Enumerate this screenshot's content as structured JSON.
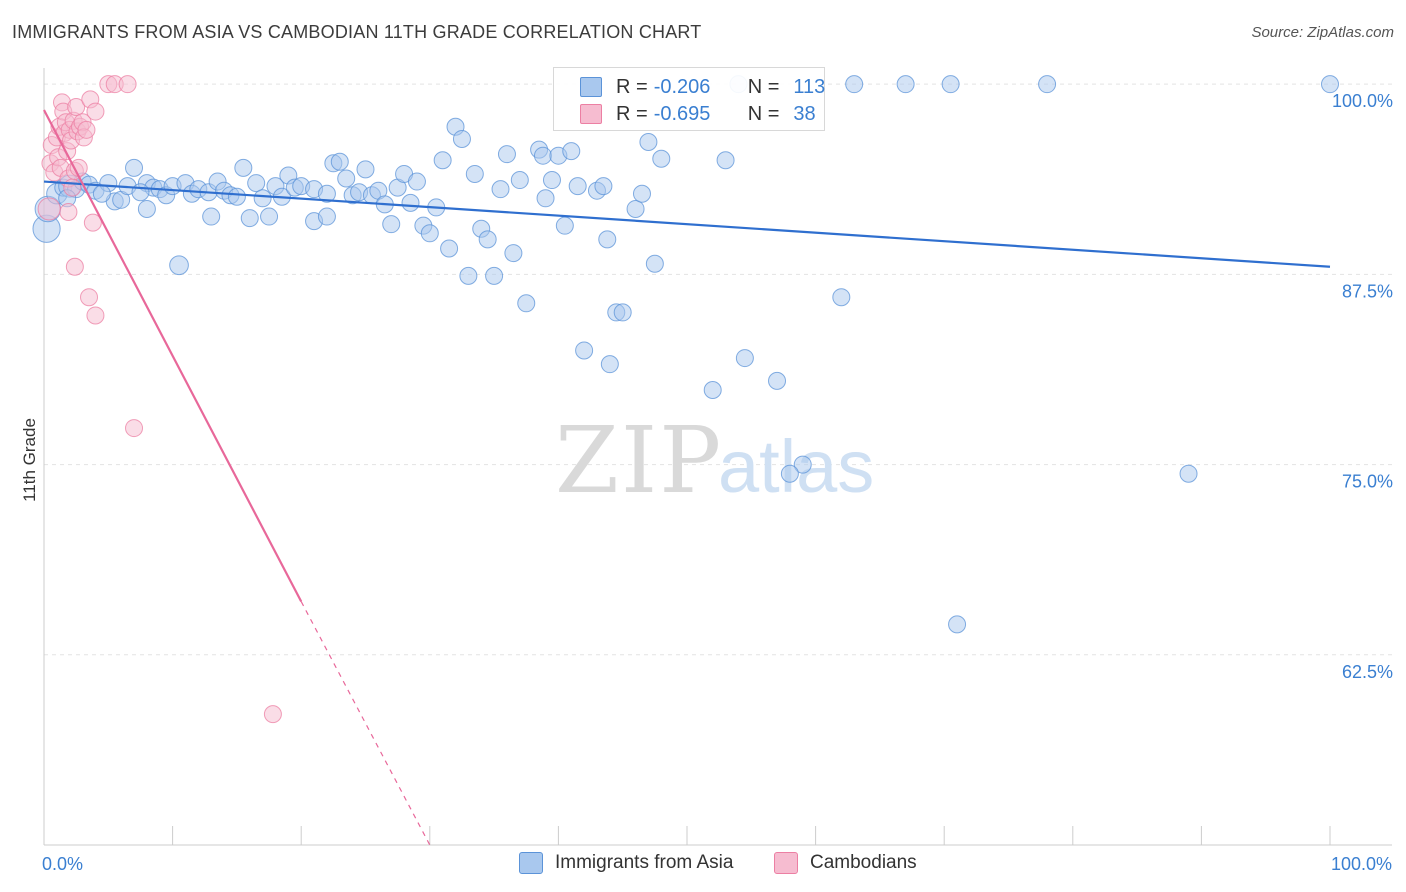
{
  "title": "IMMIGRANTS FROM ASIA VS CAMBODIAN 11TH GRADE CORRELATION CHART",
  "source": "Source: ZipAtlas.com",
  "watermark": {
    "zip": "ZIP",
    "atlas": "atlas"
  },
  "colors": {
    "blue_fill": "#a9c8ee",
    "blue_stroke": "#5b93d8",
    "blue_line": "#2f6fcf",
    "pink_fill": "#f6bcd0",
    "pink_stroke": "#ec7fa3",
    "pink_line": "#e8689a",
    "axis_text": "#3a7fd1",
    "grid": "#e3e3e3"
  },
  "legend": {
    "rows": [
      {
        "r_label": "R =",
        "r_value": "-0.206",
        "n_label": "N =",
        "n_value": "113",
        "series": "blue"
      },
      {
        "r_label": "R =",
        "r_value": "-0.695",
        "n_label": "N =",
        "n_value": "38",
        "series": "pink"
      }
    ]
  },
  "bottom_legend": [
    {
      "label": "Immigrants from Asia",
      "series": "blue"
    },
    {
      "label": "Cambodians",
      "series": "pink"
    }
  ],
  "chart_data": {
    "type": "scatter",
    "title": "IMMIGRANTS FROM ASIA VS CAMBODIAN 11TH GRADE CORRELATION CHART",
    "xlabel": "",
    "ylabel": "11th Grade",
    "xlim": [
      0,
      100
    ],
    "ylim": [
      50,
      100.8
    ],
    "x_tick_labels": [
      {
        "value": 0,
        "label": "0.0%"
      },
      {
        "value": 100,
        "label": "100.0%"
      }
    ],
    "y_tick_labels": [
      {
        "value": 100,
        "label": "100.0%"
      },
      {
        "value": 87.5,
        "label": "87.5%"
      },
      {
        "value": 75,
        "label": "75.0%"
      },
      {
        "value": 62.5,
        "label": "62.5%"
      }
    ],
    "legend_position": "top-center",
    "series": [
      {
        "name": "Immigrants from Asia",
        "color": "blue",
        "trend": {
          "x": [
            0,
            100
          ],
          "y": [
            93.6,
            88.0
          ]
        },
        "points": [
          {
            "x": 0.2,
            "y": 90.5,
            "s": 1.6
          },
          {
            "x": 0.3,
            "y": 91.8,
            "s": 1.5
          },
          {
            "x": 1,
            "y": 92.8,
            "s": 1.2
          },
          {
            "x": 1.5,
            "y": 93.2,
            "s": 1
          },
          {
            "x": 2,
            "y": 93.3,
            "s": 1.3
          },
          {
            "x": 2.5,
            "y": 93.1,
            "s": 1
          },
          {
            "x": 3,
            "y": 93.6,
            "s": 1
          },
          {
            "x": 3.5,
            "y": 93.4,
            "s": 1
          },
          {
            "x": 4,
            "y": 93.0,
            "s": 1
          },
          {
            "x": 5,
            "y": 93.5,
            "s": 1
          },
          {
            "x": 5.5,
            "y": 92.3,
            "s": 1
          },
          {
            "x": 6,
            "y": 92.4,
            "s": 1
          },
          {
            "x": 6.5,
            "y": 93.3,
            "s": 1
          },
          {
            "x": 7,
            "y": 94.5,
            "s": 1
          },
          {
            "x": 8,
            "y": 93.5,
            "s": 1
          },
          {
            "x": 8.5,
            "y": 93.2,
            "s": 1
          },
          {
            "x": 8,
            "y": 91.8,
            "s": 1
          },
          {
            "x": 9,
            "y": 93.1,
            "s": 1
          },
          {
            "x": 9.5,
            "y": 92.7,
            "s": 1
          },
          {
            "x": 10,
            "y": 93.3,
            "s": 1
          },
          {
            "x": 11,
            "y": 93.5,
            "s": 1
          },
          {
            "x": 11.5,
            "y": 92.8,
            "s": 1
          },
          {
            "x": 10.5,
            "y": 88.1,
            "s": 1.1
          },
          {
            "x": 12,
            "y": 93.1,
            "s": 1
          },
          {
            "x": 12.8,
            "y": 92.9,
            "s": 1
          },
          {
            "x": 13,
            "y": 91.3,
            "s": 1
          },
          {
            "x": 13.5,
            "y": 93.6,
            "s": 1
          },
          {
            "x": 14,
            "y": 93.0,
            "s": 1
          },
          {
            "x": 14.5,
            "y": 92.7,
            "s": 1
          },
          {
            "x": 15,
            "y": 92.6,
            "s": 1
          },
          {
            "x": 15.5,
            "y": 94.5,
            "s": 1
          },
          {
            "x": 16,
            "y": 91.2,
            "s": 1
          },
          {
            "x": 16.5,
            "y": 93.5,
            "s": 1
          },
          {
            "x": 17,
            "y": 92.5,
            "s": 1
          },
          {
            "x": 17.5,
            "y": 91.3,
            "s": 1
          },
          {
            "x": 18,
            "y": 93.3,
            "s": 1
          },
          {
            "x": 18.5,
            "y": 92.6,
            "s": 1
          },
          {
            "x": 19,
            "y": 94.0,
            "s": 1
          },
          {
            "x": 19.5,
            "y": 93.2,
            "s": 1
          },
          {
            "x": 20,
            "y": 93.3,
            "s": 1
          },
          {
            "x": 21,
            "y": 93.1,
            "s": 1
          },
          {
            "x": 21,
            "y": 91.0,
            "s": 1
          },
          {
            "x": 22,
            "y": 92.8,
            "s": 1
          },
          {
            "x": 22,
            "y": 91.3,
            "s": 1
          },
          {
            "x": 22.5,
            "y": 94.8,
            "s": 1
          },
          {
            "x": 23,
            "y": 94.9,
            "s": 1
          },
          {
            "x": 23.5,
            "y": 93.8,
            "s": 1
          },
          {
            "x": 24,
            "y": 92.7,
            "s": 1
          },
          {
            "x": 24.5,
            "y": 92.9,
            "s": 1
          },
          {
            "x": 25,
            "y": 94.4,
            "s": 1
          },
          {
            "x": 25.5,
            "y": 92.7,
            "s": 1
          },
          {
            "x": 26,
            "y": 93.0,
            "s": 1
          },
          {
            "x": 26.5,
            "y": 92.1,
            "s": 1
          },
          {
            "x": 27,
            "y": 90.8,
            "s": 1
          },
          {
            "x": 27.5,
            "y": 93.2,
            "s": 1
          },
          {
            "x": 28,
            "y": 94.1,
            "s": 1
          },
          {
            "x": 28.5,
            "y": 92.2,
            "s": 1
          },
          {
            "x": 29,
            "y": 93.6,
            "s": 1
          },
          {
            "x": 29.5,
            "y": 90.7,
            "s": 1
          },
          {
            "x": 30,
            "y": 90.2,
            "s": 1
          },
          {
            "x": 30.5,
            "y": 91.9,
            "s": 1
          },
          {
            "x": 31,
            "y": 95.0,
            "s": 1
          },
          {
            "x": 31.5,
            "y": 89.2,
            "s": 1
          },
          {
            "x": 32,
            "y": 97.2,
            "s": 1
          },
          {
            "x": 32.5,
            "y": 96.4,
            "s": 1
          },
          {
            "x": 33,
            "y": 87.4,
            "s": 1
          },
          {
            "x": 33.5,
            "y": 94.1,
            "s": 1
          },
          {
            "x": 34,
            "y": 90.5,
            "s": 1
          },
          {
            "x": 34.5,
            "y": 89.8,
            "s": 1
          },
          {
            "x": 35,
            "y": 87.4,
            "s": 1
          },
          {
            "x": 35.5,
            "y": 93.1,
            "s": 1
          },
          {
            "x": 36,
            "y": 95.4,
            "s": 1
          },
          {
            "x": 36.5,
            "y": 88.9,
            "s": 1
          },
          {
            "x": 37,
            "y": 93.7,
            "s": 1
          },
          {
            "x": 37.5,
            "y": 85.6,
            "s": 1
          },
          {
            "x": 38.5,
            "y": 95.7,
            "s": 1
          },
          {
            "x": 38.8,
            "y": 95.3,
            "s": 1
          },
          {
            "x": 39,
            "y": 92.5,
            "s": 1
          },
          {
            "x": 39.5,
            "y": 93.7,
            "s": 1
          },
          {
            "x": 40,
            "y": 95.3,
            "s": 1
          },
          {
            "x": 40.5,
            "y": 90.7,
            "s": 1
          },
          {
            "x": 41,
            "y": 95.6,
            "s": 1
          },
          {
            "x": 41.5,
            "y": 93.3,
            "s": 1
          },
          {
            "x": 42,
            "y": 82.5,
            "s": 1
          },
          {
            "x": 43,
            "y": 93.0,
            "s": 1
          },
          {
            "x": 43.5,
            "y": 93.3,
            "s": 1
          },
          {
            "x": 43.8,
            "y": 89.8,
            "s": 1
          },
          {
            "x": 44,
            "y": 81.6,
            "s": 1
          },
          {
            "x": 44.5,
            "y": 85.0,
            "s": 1
          },
          {
            "x": 45,
            "y": 85.0,
            "s": 1
          },
          {
            "x": 46,
            "y": 91.8,
            "s": 1
          },
          {
            "x": 46.5,
            "y": 92.8,
            "s": 1
          },
          {
            "x": 47,
            "y": 96.2,
            "s": 1
          },
          {
            "x": 47.5,
            "y": 88.2,
            "s": 1
          },
          {
            "x": 48,
            "y": 95.1,
            "s": 1
          },
          {
            "x": 52,
            "y": 79.9,
            "s": 1
          },
          {
            "x": 53,
            "y": 95.0,
            "s": 1
          },
          {
            "x": 54,
            "y": 100.0,
            "s": 1
          },
          {
            "x": 54.5,
            "y": 82.0,
            "s": 1
          },
          {
            "x": 57,
            "y": 80.5,
            "s": 1
          },
          {
            "x": 59,
            "y": 75.0,
            "s": 1
          },
          {
            "x": 58,
            "y": 74.4,
            "s": 1
          },
          {
            "x": 62,
            "y": 86.0,
            "s": 1
          },
          {
            "x": 63,
            "y": 100.0,
            "s": 1
          },
          {
            "x": 67,
            "y": 100.0,
            "s": 1
          },
          {
            "x": 70.5,
            "y": 100.0,
            "s": 1
          },
          {
            "x": 71,
            "y": 64.5,
            "s": 1
          },
          {
            "x": 78,
            "y": 100.0,
            "s": 1
          },
          {
            "x": 89,
            "y": 74.4,
            "s": 1
          },
          {
            "x": 100,
            "y": 100.0,
            "s": 1
          },
          {
            "x": 1.8,
            "y": 92.5,
            "s": 1
          },
          {
            "x": 4.5,
            "y": 92.8,
            "s": 1
          },
          {
            "x": 7.5,
            "y": 92.9,
            "s": 1
          }
        ]
      },
      {
        "name": "Cambodians",
        "color": "pink",
        "trend": {
          "x": [
            0,
            20
          ],
          "y": [
            98.3,
            66.0
          ]
        },
        "trend_dashed": {
          "x": [
            20,
            30
          ],
          "y": [
            66.0,
            50.0
          ]
        },
        "points": [
          {
            "x": 0.4,
            "y": 91.8,
            "s": 1.3
          },
          {
            "x": 0.5,
            "y": 94.8,
            "s": 1
          },
          {
            "x": 0.6,
            "y": 96.0,
            "s": 1
          },
          {
            "x": 0.8,
            "y": 94.2,
            "s": 1
          },
          {
            "x": 1,
            "y": 96.5,
            "s": 1
          },
          {
            "x": 1.1,
            "y": 95.2,
            "s": 1
          },
          {
            "x": 1.2,
            "y": 97.2,
            "s": 1
          },
          {
            "x": 1.3,
            "y": 94.5,
            "s": 1
          },
          {
            "x": 1.4,
            "y": 98.8,
            "s": 1
          },
          {
            "x": 1.5,
            "y": 98.2,
            "s": 1
          },
          {
            "x": 1.6,
            "y": 96.8,
            "s": 1
          },
          {
            "x": 1.7,
            "y": 97.5,
            "s": 1
          },
          {
            "x": 1.8,
            "y": 95.6,
            "s": 1
          },
          {
            "x": 1.9,
            "y": 93.8,
            "s": 1
          },
          {
            "x": 2,
            "y": 97.0,
            "s": 1
          },
          {
            "x": 2.1,
            "y": 96.3,
            "s": 1
          },
          {
            "x": 2.2,
            "y": 93.2,
            "s": 1
          },
          {
            "x": 2.3,
            "y": 97.6,
            "s": 1
          },
          {
            "x": 2.4,
            "y": 94.3,
            "s": 1
          },
          {
            "x": 2.5,
            "y": 98.5,
            "s": 1
          },
          {
            "x": 2.6,
            "y": 96.9,
            "s": 1
          },
          {
            "x": 2.7,
            "y": 94.5,
            "s": 1
          },
          {
            "x": 2.8,
            "y": 97.2,
            "s": 1
          },
          {
            "x": 3,
            "y": 97.5,
            "s": 1
          },
          {
            "x": 3.1,
            "y": 96.5,
            "s": 1
          },
          {
            "x": 3.3,
            "y": 97.0,
            "s": 1
          },
          {
            "x": 3.6,
            "y": 99.0,
            "s": 1
          },
          {
            "x": 4,
            "y": 98.2,
            "s": 1
          },
          {
            "x": 1.9,
            "y": 91.6,
            "s": 1
          },
          {
            "x": 3.8,
            "y": 90.9,
            "s": 1
          },
          {
            "x": 2.4,
            "y": 88.0,
            "s": 1
          },
          {
            "x": 3.5,
            "y": 86.0,
            "s": 1
          },
          {
            "x": 4,
            "y": 84.8,
            "s": 1
          },
          {
            "x": 5,
            "y": 100.0,
            "s": 1
          },
          {
            "x": 5.5,
            "y": 100.0,
            "s": 1
          },
          {
            "x": 6.5,
            "y": 100.0,
            "s": 1
          },
          {
            "x": 7,
            "y": 77.4,
            "s": 1
          },
          {
            "x": 17.8,
            "y": 58.6,
            "s": 1
          }
        ]
      }
    ]
  }
}
